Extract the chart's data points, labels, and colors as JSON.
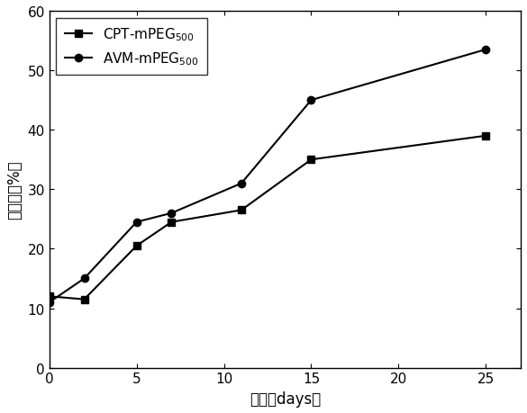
{
  "cpt_x": [
    0,
    2,
    5,
    7,
    11,
    15,
    25
  ],
  "cpt_y": [
    12.0,
    11.5,
    20.5,
    24.5,
    26.5,
    35.0,
    39.0
  ],
  "avm_x": [
    0,
    2,
    5,
    7,
    11,
    15,
    25
  ],
  "avm_y": [
    11.0,
    15.0,
    24.5,
    26.0,
    31.0,
    45.0,
    53.5
  ],
  "cpt_label": "CPT-mPEG$_{500}$",
  "avm_label": "AVM-mPEG$_{500}$",
  "xlabel": "时间（days）",
  "ylabel": "载药率（%）",
  "xlim": [
    0,
    27
  ],
  "ylim": [
    0,
    60
  ],
  "xticks": [
    0,
    5,
    10,
    15,
    20,
    25
  ],
  "yticks": [
    0,
    10,
    20,
    30,
    40,
    50,
    60
  ],
  "line_color": "#000000",
  "marker_square": "s",
  "marker_circle": "o",
  "markersize": 6,
  "linewidth": 1.5,
  "legend_fontsize": 11,
  "axis_fontsize": 12,
  "tick_fontsize": 11,
  "background_color": "#ffffff"
}
